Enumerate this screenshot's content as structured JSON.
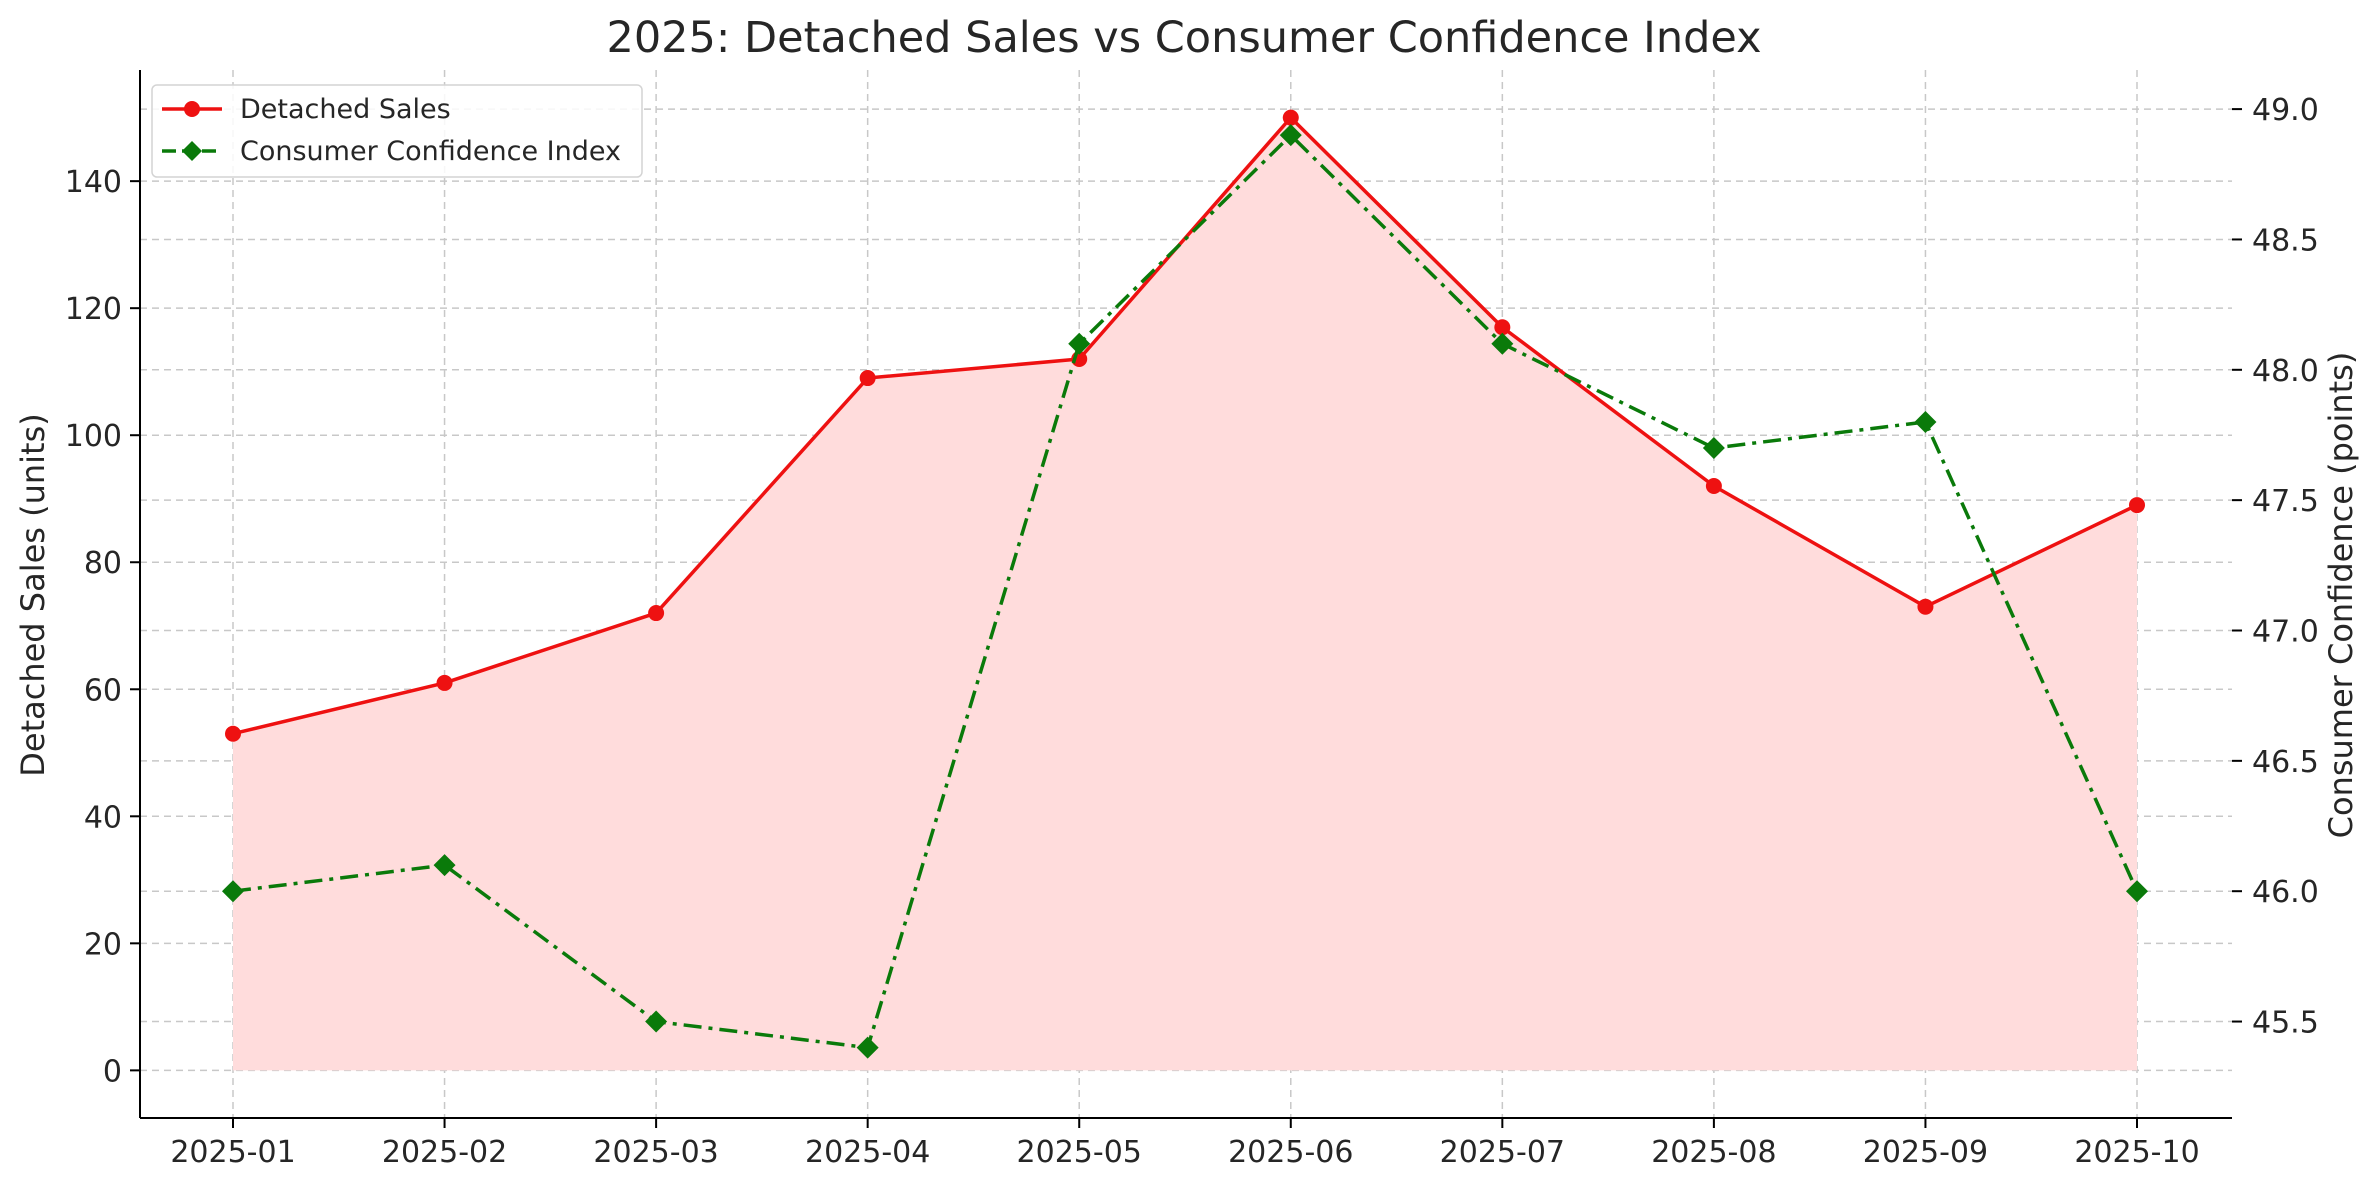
{
  "chart_data": {
    "type": "line",
    "title": "2025: Detached Sales vs Consumer Confidence Index",
    "xlabel": "",
    "ylabel": "Detached Sales (units)",
    "y2label": "Consumer Confidence (points)",
    "categories": [
      "2025-01",
      "2025-02",
      "2025-03",
      "2025-04",
      "2025-05",
      "2025-06",
      "2025-07",
      "2025-08",
      "2025-09",
      "2025-10"
    ],
    "ylim": [
      -7.5,
      157.5
    ],
    "y2lim": [
      45.13,
      49.15
    ],
    "yticks": [
      0,
      20,
      40,
      60,
      80,
      100,
      120,
      140
    ],
    "y2ticks": [
      45.5,
      46.0,
      46.5,
      47.0,
      47.5,
      48.0,
      48.5,
      49.0
    ],
    "ytick_labels": [
      "0",
      "20",
      "40",
      "60",
      "80",
      "100",
      "120",
      "140"
    ],
    "y2tick_labels": [
      "45.5",
      "46.0",
      "46.5",
      "47.0",
      "47.5",
      "48.0",
      "48.5",
      "49.0"
    ],
    "grid": true,
    "legend_position": "top-left",
    "series": [
      {
        "name": "Detached Sales",
        "axis": "left",
        "color": "#ee1111",
        "fill_color": "#ffdcdc",
        "marker": "circle",
        "line_style": "solid",
        "values": [
          53,
          61,
          72,
          109,
          112,
          150,
          117,
          92,
          73,
          89
        ]
      },
      {
        "name": "Consumer Confidence Index",
        "axis": "right",
        "color": "#0a7a0a",
        "marker": "diamond",
        "line_style": "dashdot",
        "values": [
          46.0,
          46.1,
          45.5,
          45.4,
          48.1,
          48.9,
          48.1,
          47.7,
          47.8,
          46.0
        ]
      }
    ]
  }
}
